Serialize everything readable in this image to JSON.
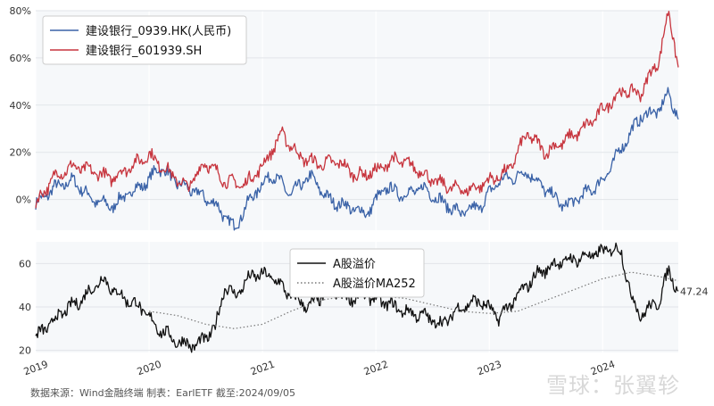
{
  "footer": {
    "text": "数据来源：Wind金融终端 制表：EarlETF 截至:2024/09/05"
  },
  "watermark": {
    "text": "雪球：张翼轸"
  },
  "chart_data": [
    {
      "type": "line",
      "title": "",
      "x_range": [
        "2019-01",
        "2024-09"
      ],
      "ylim": [
        -13,
        80
      ],
      "yticks": [
        "0%",
        "20%",
        "40%",
        "60%",
        "80%"
      ],
      "legend_position": "top-left",
      "series": [
        {
          "name": "建设银行_0939.HK(人民币)",
          "color": "#3a62a7",
          "points": [
            [
              "2019-01",
              -2
            ],
            [
              "2019-03",
              5
            ],
            [
              "2019-05",
              8
            ],
            [
              "2019-07",
              0
            ],
            [
              "2019-09",
              -3
            ],
            [
              "2019-11",
              3
            ],
            [
              "2020-01",
              8
            ],
            [
              "2020-02",
              14
            ],
            [
              "2020-04",
              7
            ],
            [
              "2020-06",
              3
            ],
            [
              "2020-08",
              -2
            ],
            [
              "2020-10",
              -12
            ],
            [
              "2020-12",
              2
            ],
            [
              "2021-02",
              11
            ],
            [
              "2021-04",
              2
            ],
            [
              "2021-06",
              10
            ],
            [
              "2021-08",
              0
            ],
            [
              "2021-10",
              -3
            ],
            [
              "2021-12",
              -6
            ],
            [
              "2022-02",
              5
            ],
            [
              "2022-04",
              2
            ],
            [
              "2022-06",
              5
            ],
            [
              "2022-08",
              -1
            ],
            [
              "2022-10",
              -6
            ],
            [
              "2022-12",
              -3
            ],
            [
              "2023-02",
              8
            ],
            [
              "2023-04",
              10
            ],
            [
              "2023-05",
              12
            ],
            [
              "2023-07",
              4
            ],
            [
              "2023-09",
              -3
            ],
            [
              "2023-11",
              2
            ],
            [
              "2024-01",
              8
            ],
            [
              "2024-03",
              22
            ],
            [
              "2024-05",
              35
            ],
            [
              "2024-07",
              38
            ],
            [
              "2024-08",
              45
            ],
            [
              "2024-09",
              34
            ]
          ]
        },
        {
          "name": "建设银行_601939.SH",
          "color": "#c7353e",
          "points": [
            [
              "2019-01",
              -2
            ],
            [
              "2019-03",
              10
            ],
            [
              "2019-05",
              14
            ],
            [
              "2019-07",
              12
            ],
            [
              "2019-09",
              9
            ],
            [
              "2019-11",
              14
            ],
            [
              "2020-01",
              19
            ],
            [
              "2020-03",
              12
            ],
            [
              "2020-05",
              5
            ],
            [
              "2020-07",
              16
            ],
            [
              "2020-09",
              8
            ],
            [
              "2020-11",
              6
            ],
            [
              "2021-01",
              14
            ],
            [
              "2021-03",
              28
            ],
            [
              "2021-05",
              18
            ],
            [
              "2021-07",
              15
            ],
            [
              "2021-09",
              16
            ],
            [
              "2021-11",
              10
            ],
            [
              "2022-01",
              12
            ],
            [
              "2022-03",
              17
            ],
            [
              "2022-05",
              14
            ],
            [
              "2022-07",
              8
            ],
            [
              "2022-09",
              5
            ],
            [
              "2022-11",
              4
            ],
            [
              "2023-01",
              8
            ],
            [
              "2023-03",
              12
            ],
            [
              "2023-05",
              28
            ],
            [
              "2023-07",
              20
            ],
            [
              "2023-09",
              25
            ],
            [
              "2023-11",
              30
            ],
            [
              "2024-01",
              38
            ],
            [
              "2024-03",
              46
            ],
            [
              "2024-05",
              45
            ],
            [
              "2024-07",
              60
            ],
            [
              "2024-08",
              80
            ],
            [
              "2024-09",
              56
            ]
          ]
        }
      ]
    },
    {
      "type": "line",
      "title": "",
      "x_range": [
        "2019-01",
        "2024-09"
      ],
      "xticks": [
        "2019",
        "2020",
        "2021",
        "2022",
        "2023",
        "2024"
      ],
      "ylim": [
        19,
        70
      ],
      "yticks": [
        "20",
        "40",
        "60"
      ],
      "legend_position": "top-center",
      "end_label": "47.24",
      "series": [
        {
          "name": "A股溢价",
          "color": "#111111",
          "style": "solid",
          "points": [
            [
              "2019-01",
              26
            ],
            [
              "2019-04",
              38
            ],
            [
              "2019-06",
              44
            ],
            [
              "2019-08",
              53
            ],
            [
              "2019-10",
              45
            ],
            [
              "2019-12",
              40
            ],
            [
              "2020-02",
              30
            ],
            [
              "2020-04",
              24
            ],
            [
              "2020-06",
              22
            ],
            [
              "2020-08",
              30
            ],
            [
              "2020-09",
              50
            ],
            [
              "2020-10",
              45
            ],
            [
              "2020-12",
              55
            ],
            [
              "2021-02",
              54
            ],
            [
              "2021-04",
              45
            ],
            [
              "2021-06",
              40
            ],
            [
              "2021-08",
              48
            ],
            [
              "2021-10",
              44
            ],
            [
              "2021-12",
              45
            ],
            [
              "2022-02",
              42
            ],
            [
              "2022-04",
              38
            ],
            [
              "2022-06",
              36
            ],
            [
              "2022-08",
              32
            ],
            [
              "2022-10",
              40
            ],
            [
              "2022-12",
              43
            ],
            [
              "2023-02",
              35
            ],
            [
              "2023-04",
              45
            ],
            [
              "2023-06",
              55
            ],
            [
              "2023-08",
              60
            ],
            [
              "2023-10",
              62
            ],
            [
              "2023-12",
              64
            ],
            [
              "2024-02",
              67
            ],
            [
              "2024-03",
              65
            ],
            [
              "2024-04",
              45
            ],
            [
              "2024-05",
              36
            ],
            [
              "2024-07",
              43
            ],
            [
              "2024-08",
              57
            ],
            [
              "2024-09",
              47.24
            ]
          ]
        },
        {
          "name": "A股溢价MA252",
          "color": "#777777",
          "style": "dotted",
          "points": [
            [
              "2020-01",
              38
            ],
            [
              "2020-04",
              36
            ],
            [
              "2020-07",
              32
            ],
            [
              "2020-10",
              30
            ],
            [
              "2021-01",
              32
            ],
            [
              "2021-04",
              38
            ],
            [
              "2021-07",
              43
            ],
            [
              "2021-10",
              45
            ],
            [
              "2022-01",
              45
            ],
            [
              "2022-04",
              44
            ],
            [
              "2022-07",
              41
            ],
            [
              "2022-10",
              38
            ],
            [
              "2023-01",
              37
            ],
            [
              "2023-04",
              38
            ],
            [
              "2023-07",
              43
            ],
            [
              "2023-10",
              48
            ],
            [
              "2024-01",
              53
            ],
            [
              "2024-04",
              56
            ],
            [
              "2024-07",
              54
            ],
            [
              "2024-09",
              52
            ]
          ]
        }
      ]
    }
  ]
}
